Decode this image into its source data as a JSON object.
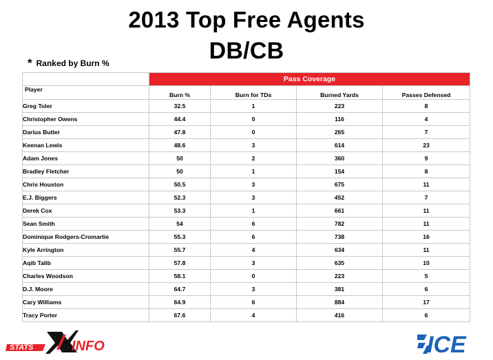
{
  "title_line1": "2013 Top Free Agents",
  "title_line2": "DB/CB",
  "note": "Ranked by Burn %",
  "note_marker": "*",
  "table": {
    "group_header": "Pass Coverage",
    "columns": [
      "Player",
      "Burn %",
      "Burn for TDs",
      "Burned Yards",
      "Passes Defensed"
    ],
    "rows": [
      {
        "player": "Greg Toler",
        "burn_pct": "32.5",
        "burn_tds": "1",
        "burned_yards": "223",
        "passes_defensed": "8"
      },
      {
        "player": "Christopher Owens",
        "burn_pct": "44.4",
        "burn_tds": "0",
        "burned_yards": "116",
        "passes_defensed": "4"
      },
      {
        "player": "Darius Butler",
        "burn_pct": "47.8",
        "burn_tds": "0",
        "burned_yards": "265",
        "passes_defensed": "7"
      },
      {
        "player": "Keenan Lewis",
        "burn_pct": "48.6",
        "burn_tds": "3",
        "burned_yards": "614",
        "passes_defensed": "23"
      },
      {
        "player": "Adam Jones",
        "burn_pct": "50",
        "burn_tds": "2",
        "burned_yards": "360",
        "passes_defensed": "9"
      },
      {
        "player": "Bradley Fletcher",
        "burn_pct": "50",
        "burn_tds": "1",
        "burned_yards": "154",
        "passes_defensed": "8"
      },
      {
        "player": "Chris Houston",
        "burn_pct": "50.5",
        "burn_tds": "3",
        "burned_yards": "675",
        "passes_defensed": "11"
      },
      {
        "player": "E.J. Biggers",
        "burn_pct": "52.3",
        "burn_tds": "3",
        "burned_yards": "452",
        "passes_defensed": "7"
      },
      {
        "player": "Derek Cox",
        "burn_pct": "53.3",
        "burn_tds": "1",
        "burned_yards": "661",
        "passes_defensed": "11"
      },
      {
        "player": "Sean Smith",
        "burn_pct": "54",
        "burn_tds": "6",
        "burned_yards": "782",
        "passes_defensed": "11"
      },
      {
        "player": "Dominique Rodgers-Cromartie",
        "burn_pct": "55.3",
        "burn_tds": "6",
        "burned_yards": "738",
        "passes_defensed": "16"
      },
      {
        "player": "Kyle Arrington",
        "burn_pct": "55.7",
        "burn_tds": "4",
        "burned_yards": "634",
        "passes_defensed": "11"
      },
      {
        "player": "Aqib Talib",
        "burn_pct": "57.8",
        "burn_tds": "3",
        "burned_yards": "635",
        "passes_defensed": "10"
      },
      {
        "player": "Charles Woodson",
        "burn_pct": "58.1",
        "burn_tds": "0",
        "burned_yards": "223",
        "passes_defensed": "5"
      },
      {
        "player": "D.J. Moore",
        "burn_pct": "64.7",
        "burn_tds": "3",
        "burned_yards": "381",
        "passes_defensed": "6"
      },
      {
        "player": "Cary Williams",
        "burn_pct": "64.9",
        "burn_tds": "6",
        "burned_yards": "884",
        "passes_defensed": "17"
      },
      {
        "player": "Tracy Porter",
        "burn_pct": "67.6",
        "burn_tds": "4",
        "burned_yards": "416",
        "passes_defensed": "6"
      }
    ]
  },
  "logos": {
    "left": {
      "word1": "STATS",
      "word2": "INFO",
      "letter": "X"
    },
    "right": {
      "word": "ICE"
    }
  },
  "colors": {
    "accent_red": "#e8232a",
    "ice_blue": "#1b63b8",
    "grid": "#c8c8c8"
  }
}
